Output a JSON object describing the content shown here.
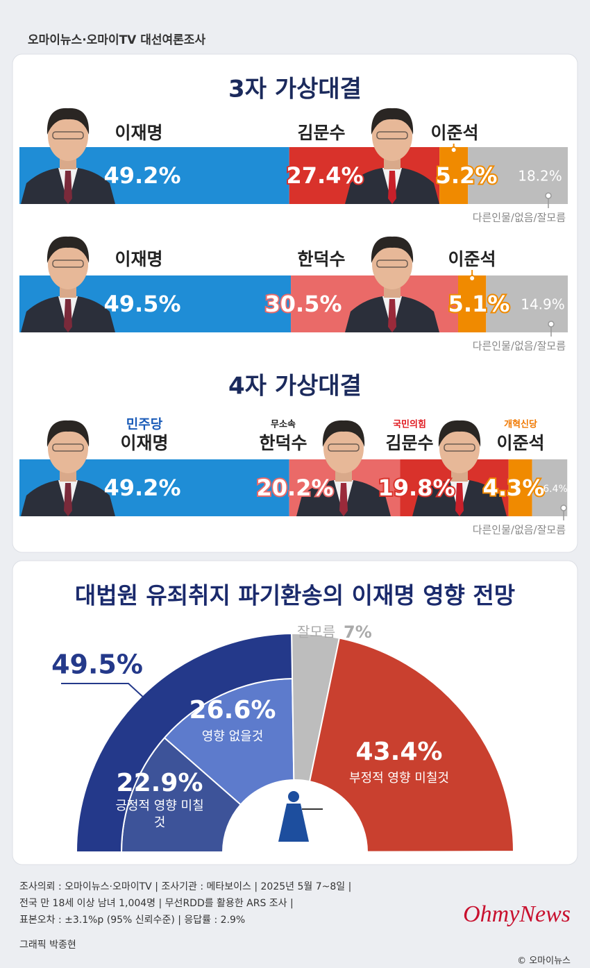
{
  "header": {
    "title": "오마이뉴스·오마이TV 대선여론조사"
  },
  "chart_data": [
    {
      "type": "bar",
      "orientation": "horizontal",
      "stacked": true,
      "title": "3자 가상대결",
      "xlim": [
        0,
        100
      ],
      "series": [
        {
          "name": "이재명",
          "color": "#1f8dd6",
          "values": [
            49.2
          ],
          "value_labels": [
            "49.2%"
          ]
        },
        {
          "name": "김문수",
          "color": "#d9322b",
          "values": [
            27.4
          ],
          "value_labels": [
            "27.4%"
          ]
        },
        {
          "name": "이준석",
          "color": "#f08a00",
          "values": [
            5.2
          ],
          "value_labels": [
            "5.2%"
          ]
        },
        {
          "name": "다른인물/없음/잘모름",
          "color": "#bdbdbd",
          "values": [
            18.2
          ],
          "value_labels": [
            "18.2%"
          ]
        }
      ]
    },
    {
      "type": "bar",
      "orientation": "horizontal",
      "stacked": true,
      "xlim": [
        0,
        100
      ],
      "series": [
        {
          "name": "이재명",
          "color": "#1f8dd6",
          "values": [
            49.5
          ],
          "value_labels": [
            "49.5%"
          ]
        },
        {
          "name": "한덕수",
          "color": "#ea6a68",
          "values": [
            30.5
          ],
          "value_labels": [
            "30.5%"
          ]
        },
        {
          "name": "이준석",
          "color": "#f08a00",
          "values": [
            5.1
          ],
          "value_labels": [
            "5.1%"
          ]
        },
        {
          "name": "다른인물/없음/잘모름",
          "color": "#bdbdbd",
          "values": [
            14.9
          ],
          "value_labels": [
            "14.9%"
          ]
        }
      ]
    },
    {
      "type": "bar",
      "orientation": "horizontal",
      "stacked": true,
      "title": "4자 가상대결",
      "xlim": [
        0,
        100
      ],
      "series": [
        {
          "name": "이재명",
          "party": "민주당",
          "party_color": "#1a5bb8",
          "color": "#1f8dd6",
          "values": [
            49.2
          ],
          "value_labels": [
            "49.2%"
          ]
        },
        {
          "name": "한덕수",
          "party": "무소속",
          "party_color": "#222222",
          "color": "#ea6a68",
          "values": [
            20.2
          ],
          "value_labels": [
            "20.2%"
          ]
        },
        {
          "name": "김문수",
          "party": "국민의힘",
          "party_color": "#e0191f",
          "color": "#d9322b",
          "values": [
            19.8
          ],
          "value_labels": [
            "19.8%"
          ]
        },
        {
          "name": "이준석",
          "party": "개혁신당",
          "party_color": "#f07800",
          "color": "#f08a00",
          "values": [
            4.3
          ],
          "value_labels": [
            "4.3%"
          ]
        },
        {
          "name": "다른인물/없음/잘모름",
          "color": "#bdbdbd",
          "values": [
            6.4
          ],
          "value_labels": [
            "6.4%"
          ]
        }
      ]
    },
    {
      "type": "pie",
      "half": true,
      "title": "대법원 유죄취지 파기환송의 이재명 영향 전망",
      "categories": [
        "긍정적 영향 미칠것",
        "영향 없을것",
        "잘모름",
        "부정적 영향 미칠것"
      ],
      "values": [
        22.9,
        26.6,
        7,
        43.4
      ],
      "value_labels": [
        "22.9%",
        "26.6%",
        "7%",
        "43.4%"
      ],
      "colors": [
        "#3d5399",
        "#5d7bcc",
        "#bdbdbd",
        "#c9402f"
      ],
      "group": {
        "value": 49.5,
        "label": "49.5%",
        "color": "#24398a"
      }
    }
  ],
  "footer": {
    "lines": [
      "조사의뢰 : 오마이뉴스·오마이TV | 조사기관 : 메타보이스 | 2025년 5월 7~8일 |",
      "전국 만 18세 이상 남녀 1,004명 | 무선RDD를 활용한 ARS 조사 |",
      "표본오차 : ±3.1%p (95% 신뢰수준) | 응답률 : 2.9%"
    ],
    "credit": "그래픽 박종현",
    "logo": "OhmyNews",
    "copyright": "© 오마이뉴스"
  }
}
